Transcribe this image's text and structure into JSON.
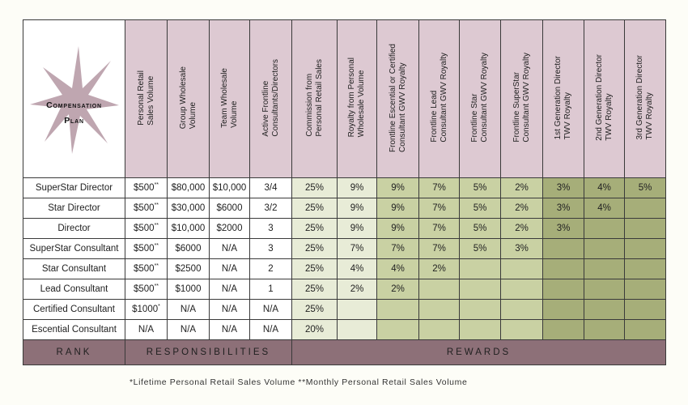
{
  "logo": {
    "line1": "Compensation",
    "line2": "Plan"
  },
  "headers": {
    "responsibilities": [
      "Personal Retail\nSales Volume",
      "Group Wholesale\nVolume",
      "Team Wholesale\nVolume",
      "Active Frontline\nConsultants/Directors"
    ],
    "rewards": [
      "Commission from\nPersonal Retail Sales",
      "Royalty from Personal\nWholesale Volume",
      "Frontline Escential or Certified\nConsultant GWV Royalty",
      "Frontline Lead\nConsultant GWV Royalty",
      "Frontline Star\nConsultant GWV Royalty",
      "Frontline SuperStar\nConsultant GWV Royalty",
      "1st Generation Director\nTWV Royalty",
      "2nd Generation Director\nTWV Royalty",
      "3rd Generation Director\nTWV Royalty"
    ]
  },
  "rows": [
    {
      "rank": "SuperStar Director",
      "retail": "$500",
      "retail_mark": "**",
      "group": "$80,000",
      "team": "$10,000",
      "active": "3/4",
      "rewards": [
        "25%",
        "9%",
        "9%",
        "7%",
        "5%",
        "2%",
        "3%",
        "4%",
        "5%"
      ]
    },
    {
      "rank": "Star Director",
      "retail": "$500",
      "retail_mark": "**",
      "group": "$30,000",
      "team": "$6000",
      "active": "3/2",
      "rewards": [
        "25%",
        "9%",
        "9%",
        "7%",
        "5%",
        "2%",
        "3%",
        "4%",
        ""
      ]
    },
    {
      "rank": "Director",
      "retail": "$500",
      "retail_mark": "**",
      "group": "$10,000",
      "team": "$2000",
      "active": "3",
      "rewards": [
        "25%",
        "9%",
        "9%",
        "7%",
        "5%",
        "2%",
        "3%",
        "",
        ""
      ]
    },
    {
      "rank": "SuperStar Consultant",
      "retail": "$500",
      "retail_mark": "**",
      "group": "$6000",
      "team": "N/A",
      "active": "3",
      "rewards": [
        "25%",
        "7%",
        "7%",
        "7%",
        "5%",
        "3%",
        "",
        "",
        ""
      ]
    },
    {
      "rank": "Star Consultant",
      "retail": "$500",
      "retail_mark": "**",
      "group": "$2500",
      "team": "N/A",
      "active": "2",
      "rewards": [
        "25%",
        "4%",
        "4%",
        "2%",
        "",
        "",
        "",
        "",
        ""
      ]
    },
    {
      "rank": "Lead Consultant",
      "retail": "$500",
      "retail_mark": "**",
      "group": "$1000",
      "team": "N/A",
      "active": "1",
      "rewards": [
        "25%",
        "2%",
        "2%",
        "",
        "",
        "",
        "",
        "",
        ""
      ]
    },
    {
      "rank": "Certified Consultant",
      "retail": "$1000",
      "retail_mark": "*",
      "group": "N/A",
      "team": "N/A",
      "active": "N/A",
      "rewards": [
        "25%",
        "",
        "",
        "",
        "",
        "",
        "",
        "",
        ""
      ]
    },
    {
      "rank": "Escential Consultant",
      "retail": "N/A",
      "retail_mark": "",
      "group": "N/A",
      "team": "N/A",
      "active": "N/A",
      "rewards": [
        "20%",
        "",
        "",
        "",
        "",
        "",
        "",
        "",
        ""
      ]
    }
  ],
  "footer": {
    "rank": "RANK",
    "responsibilities": "RESPONSIBILITIES",
    "rewards": "REWARDS"
  },
  "note": "*Lifetime Personal Retail Sales Volume   **Monthly Personal Retail Sales Volume",
  "colors": {
    "responsibilities_header": "#ddc9d2",
    "footer": "#8d7078",
    "reward_light": "#e8ecd7",
    "reward_mid": "#c9d1a3",
    "reward_dark": "#a6ae79"
  }
}
